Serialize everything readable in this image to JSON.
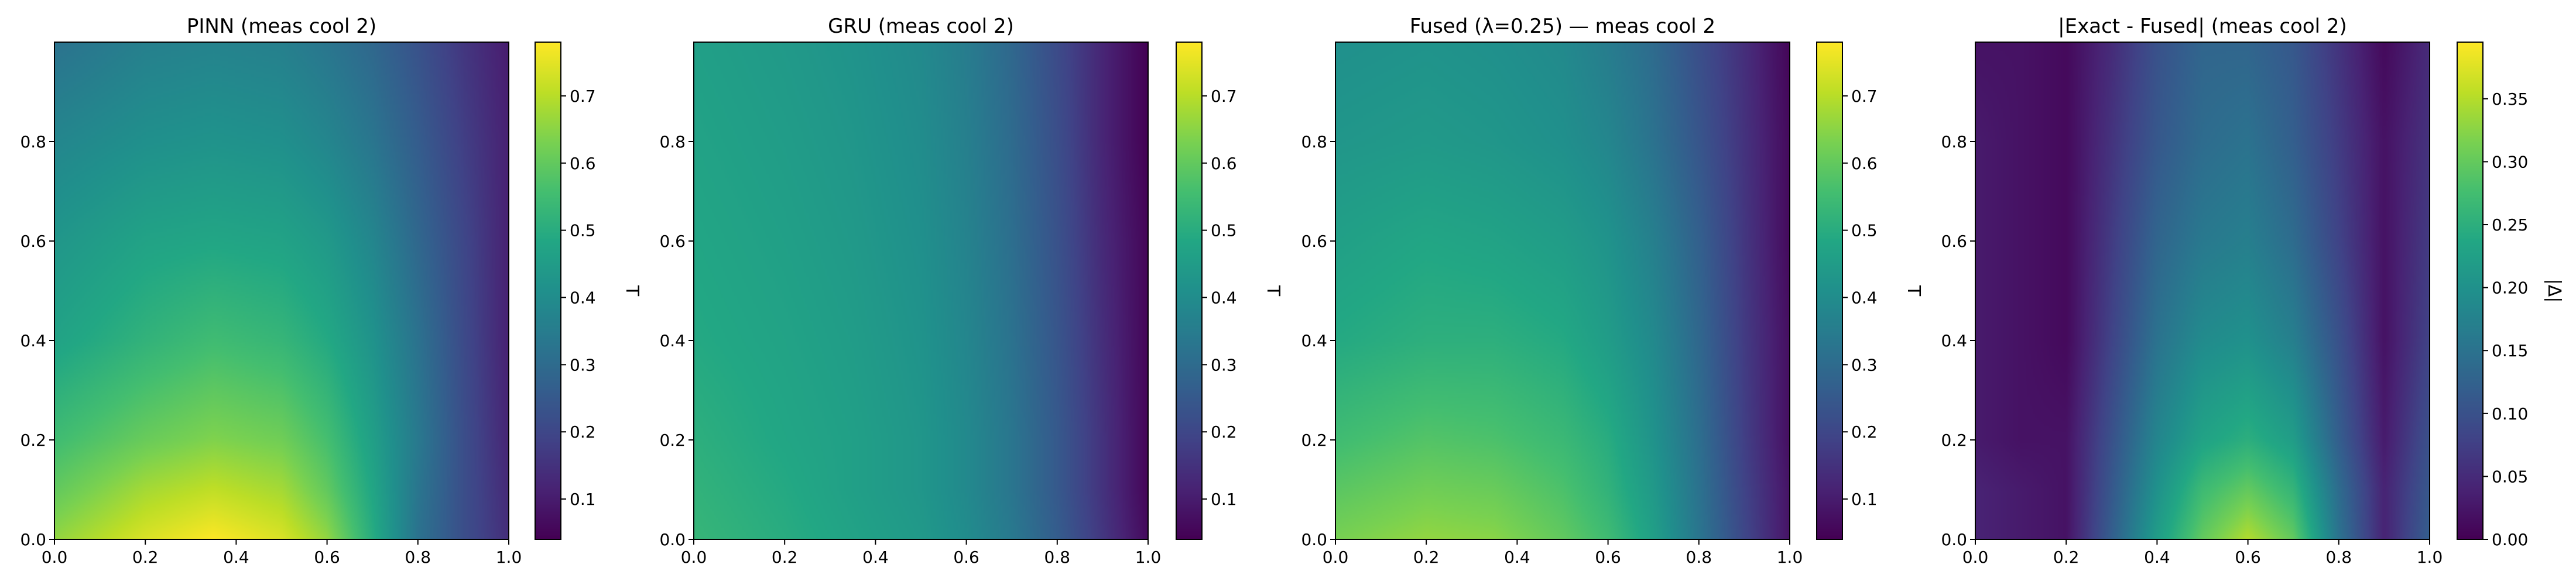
{
  "chart_data": [
    {
      "type": "heatmap",
      "title": "PINN (meas cool 2)",
      "xlim": [
        0,
        1.0
      ],
      "ylim": [
        0,
        1.0
      ],
      "xticks": [
        "0.0",
        "0.2",
        "0.4",
        "0.6",
        "0.8",
        "1.0"
      ],
      "yticks": [
        "0.0",
        "0.2",
        "0.4",
        "0.6",
        "0.8"
      ],
      "colormap": "viridis",
      "colorbar": {
        "label": "T",
        "range": [
          0.04,
          0.78
        ],
        "ticks": [
          "0.1",
          "0.2",
          "0.3",
          "0.4",
          "0.5",
          "0.6",
          "0.7"
        ]
      },
      "field_samples": {
        "x": [
          0,
          0.2,
          0.35,
          0.5,
          0.6,
          0.7,
          0.8,
          0.9,
          1.0
        ],
        "y": [
          0.0,
          0.1,
          0.2,
          0.4,
          0.6,
          0.8,
          1.0
        ],
        "values": [
          [
            0.66,
            0.74,
            0.78,
            0.74,
            0.66,
            0.5,
            0.32,
            0.22,
            0.14
          ],
          [
            0.6,
            0.68,
            0.71,
            0.68,
            0.6,
            0.48,
            0.33,
            0.22,
            0.13
          ],
          [
            0.55,
            0.61,
            0.64,
            0.62,
            0.56,
            0.46,
            0.34,
            0.22,
            0.12
          ],
          [
            0.47,
            0.52,
            0.55,
            0.53,
            0.49,
            0.42,
            0.32,
            0.21,
            0.11
          ],
          [
            0.43,
            0.47,
            0.48,
            0.47,
            0.44,
            0.38,
            0.29,
            0.2,
            0.11
          ],
          [
            0.38,
            0.41,
            0.42,
            0.41,
            0.38,
            0.33,
            0.26,
            0.18,
            0.11
          ],
          [
            0.32,
            0.36,
            0.37,
            0.36,
            0.33,
            0.29,
            0.23,
            0.16,
            0.1
          ]
        ]
      }
    },
    {
      "type": "heatmap",
      "title": "GRU (meas cool 2)",
      "xlim": [
        0,
        1.0
      ],
      "ylim": [
        0,
        1.0
      ],
      "xticks": [
        "0.0",
        "0.2",
        "0.4",
        "0.6",
        "0.8",
        "1.0"
      ],
      "yticks": [
        "0.0",
        "0.2",
        "0.4",
        "0.6",
        "0.8"
      ],
      "colormap": "viridis",
      "colorbar": {
        "label": "T",
        "range": [
          0.04,
          0.78
        ],
        "ticks": [
          "0.1",
          "0.2",
          "0.3",
          "0.4",
          "0.5",
          "0.6",
          "0.7"
        ]
      },
      "field_samples": {
        "x": [
          0,
          0.2,
          0.35,
          0.5,
          0.6,
          0.7,
          0.8,
          0.9,
          1.0
        ],
        "y": [
          0.0,
          0.1,
          0.2,
          0.4,
          0.6,
          0.8,
          1.0
        ],
        "values": [
          [
            0.53,
            0.5,
            0.47,
            0.44,
            0.4,
            0.34,
            0.26,
            0.16,
            0.06
          ],
          [
            0.52,
            0.49,
            0.46,
            0.43,
            0.39,
            0.33,
            0.25,
            0.15,
            0.05
          ],
          [
            0.51,
            0.48,
            0.46,
            0.43,
            0.39,
            0.33,
            0.25,
            0.15,
            0.05
          ],
          [
            0.49,
            0.47,
            0.45,
            0.42,
            0.38,
            0.32,
            0.24,
            0.14,
            0.05
          ],
          [
            0.48,
            0.46,
            0.44,
            0.41,
            0.37,
            0.31,
            0.23,
            0.13,
            0.05
          ],
          [
            0.47,
            0.45,
            0.43,
            0.4,
            0.36,
            0.3,
            0.22,
            0.12,
            0.04
          ],
          [
            0.46,
            0.44,
            0.42,
            0.39,
            0.35,
            0.29,
            0.21,
            0.12,
            0.04
          ]
        ]
      }
    },
    {
      "type": "heatmap",
      "title": "Fused (λ=0.25) — meas cool 2",
      "xlim": [
        0,
        1.0
      ],
      "ylim": [
        0,
        1.0
      ],
      "xticks": [
        "0.0",
        "0.2",
        "0.4",
        "0.6",
        "0.8",
        "1.0"
      ],
      "yticks": [
        "0.0",
        "0.2",
        "0.4",
        "0.6",
        "0.8"
      ],
      "colormap": "viridis",
      "colorbar": {
        "label": "T",
        "range": [
          0.04,
          0.78
        ],
        "ticks": [
          "0.1",
          "0.2",
          "0.3",
          "0.4",
          "0.5",
          "0.6",
          "0.7"
        ]
      },
      "field_samples": {
        "x": [
          0,
          0.2,
          0.35,
          0.5,
          0.6,
          0.7,
          0.8,
          0.9,
          1.0
        ],
        "y": [
          0.0,
          0.1,
          0.2,
          0.4,
          0.6,
          0.8,
          1.0
        ],
        "values": [
          [
            0.63,
            0.66,
            0.65,
            0.6,
            0.55,
            0.46,
            0.33,
            0.2,
            0.08
          ],
          [
            0.59,
            0.62,
            0.61,
            0.57,
            0.52,
            0.44,
            0.32,
            0.19,
            0.08
          ],
          [
            0.55,
            0.58,
            0.57,
            0.54,
            0.5,
            0.42,
            0.31,
            0.18,
            0.07
          ],
          [
            0.49,
            0.51,
            0.51,
            0.49,
            0.45,
            0.39,
            0.29,
            0.17,
            0.07
          ],
          [
            0.46,
            0.48,
            0.47,
            0.45,
            0.42,
            0.36,
            0.27,
            0.16,
            0.06
          ],
          [
            0.43,
            0.44,
            0.43,
            0.41,
            0.38,
            0.32,
            0.24,
            0.15,
            0.06
          ],
          [
            0.41,
            0.42,
            0.41,
            0.39,
            0.35,
            0.3,
            0.22,
            0.14,
            0.05
          ]
        ]
      }
    },
    {
      "type": "heatmap",
      "title": "|Exact - Fused| (meas cool 2)",
      "xlim": [
        0,
        1.0
      ],
      "ylim": [
        0,
        1.0
      ],
      "xticks": [
        "0.0",
        "0.2",
        "0.4",
        "0.6",
        "0.8",
        "1.0"
      ],
      "yticks": [
        "0.0",
        "0.2",
        "0.4",
        "0.6",
        "0.8"
      ],
      "colormap": "viridis",
      "colorbar": {
        "label": "|Δ|",
        "range": [
          0.0,
          0.395
        ],
        "ticks": [
          "0.00",
          "0.05",
          "0.10",
          "0.15",
          "0.20",
          "0.25",
          "0.30",
          "0.35"
        ]
      },
      "field_samples": {
        "x": [
          0,
          0.1,
          0.2,
          0.3,
          0.4,
          0.5,
          0.6,
          0.7,
          0.8,
          0.9,
          1.0
        ],
        "y": [
          0.0,
          0.1,
          0.2,
          0.4,
          0.6,
          0.8,
          1.0
        ],
        "values": [
          [
            0.04,
            0.03,
            0.02,
            0.12,
            0.22,
            0.3,
            0.35,
            0.3,
            0.15,
            0.04,
            0.12
          ],
          [
            0.04,
            0.03,
            0.02,
            0.11,
            0.2,
            0.27,
            0.3,
            0.26,
            0.14,
            0.04,
            0.11
          ],
          [
            0.03,
            0.02,
            0.02,
            0.1,
            0.18,
            0.23,
            0.25,
            0.22,
            0.12,
            0.03,
            0.1
          ],
          [
            0.03,
            0.02,
            0.01,
            0.08,
            0.15,
            0.19,
            0.2,
            0.17,
            0.1,
            0.02,
            0.08
          ],
          [
            0.03,
            0.02,
            0.01,
            0.07,
            0.13,
            0.16,
            0.17,
            0.14,
            0.08,
            0.02,
            0.07
          ],
          [
            0.03,
            0.02,
            0.01,
            0.06,
            0.11,
            0.14,
            0.15,
            0.12,
            0.07,
            0.02,
            0.06
          ],
          [
            0.02,
            0.02,
            0.01,
            0.05,
            0.1,
            0.13,
            0.13,
            0.11,
            0.06,
            0.01,
            0.05
          ]
        ]
      }
    }
  ]
}
